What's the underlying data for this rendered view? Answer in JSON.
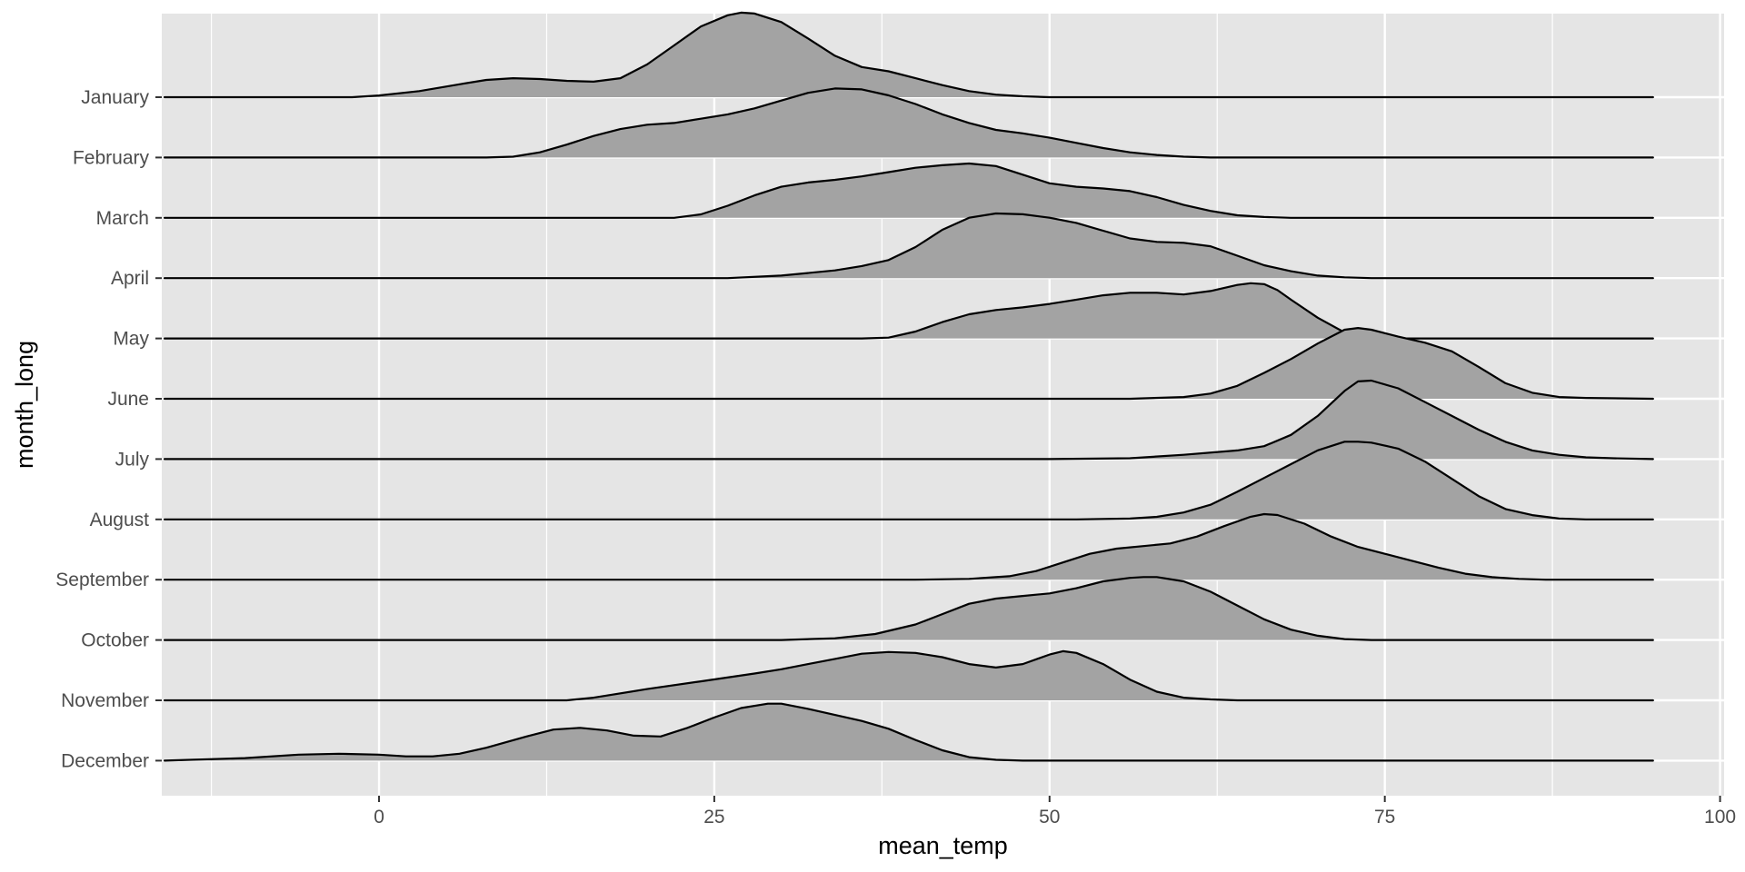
{
  "chart_data": {
    "type": "ridgeline",
    "xlabel": "mean_temp",
    "ylabel": "month_long",
    "xlim": [
      -16.2,
      100.3
    ],
    "x_ticks": [
      0,
      25,
      50,
      75,
      100
    ],
    "grid": true,
    "fill_color": "#a3a3a3",
    "line_color": "#000000",
    "panel_color": "#e5e5e5",
    "grid_color": "#ffffff",
    "categories": [
      "January",
      "February",
      "March",
      "April",
      "May",
      "June",
      "July",
      "August",
      "September",
      "October",
      "November",
      "December"
    ],
    "series": [
      {
        "label": "January",
        "points": [
          [
            -16,
            0
          ],
          [
            -10,
            0
          ],
          [
            -2,
            0
          ],
          [
            0,
            0.02
          ],
          [
            3,
            0.07
          ],
          [
            6,
            0.15
          ],
          [
            8,
            0.2
          ],
          [
            10,
            0.22
          ],
          [
            12,
            0.21
          ],
          [
            14,
            0.19
          ],
          [
            16,
            0.18
          ],
          [
            18,
            0.22
          ],
          [
            20,
            0.38
          ],
          [
            22,
            0.6
          ],
          [
            24,
            0.82
          ],
          [
            26,
            0.95
          ],
          [
            27,
            0.98
          ],
          [
            28,
            0.97
          ],
          [
            30,
            0.87
          ],
          [
            32,
            0.68
          ],
          [
            34,
            0.48
          ],
          [
            36,
            0.35
          ],
          [
            38,
            0.3
          ],
          [
            40,
            0.22
          ],
          [
            42,
            0.14
          ],
          [
            44,
            0.07
          ],
          [
            46,
            0.03
          ],
          [
            48,
            0.01
          ],
          [
            50,
            0
          ],
          [
            60,
            0
          ],
          [
            95,
            0
          ]
        ]
      },
      {
        "label": "February",
        "points": [
          [
            -16,
            0
          ],
          [
            0,
            0
          ],
          [
            8,
            0
          ],
          [
            10,
            0.01
          ],
          [
            12,
            0.06
          ],
          [
            14,
            0.15
          ],
          [
            16,
            0.25
          ],
          [
            18,
            0.33
          ],
          [
            20,
            0.38
          ],
          [
            22,
            0.4
          ],
          [
            24,
            0.45
          ],
          [
            26,
            0.5
          ],
          [
            28,
            0.57
          ],
          [
            30,
            0.66
          ],
          [
            32,
            0.75
          ],
          [
            34,
            0.8
          ],
          [
            36,
            0.79
          ],
          [
            38,
            0.72
          ],
          [
            40,
            0.62
          ],
          [
            42,
            0.5
          ],
          [
            44,
            0.4
          ],
          [
            46,
            0.32
          ],
          [
            48,
            0.28
          ],
          [
            50,
            0.23
          ],
          [
            52,
            0.17
          ],
          [
            54,
            0.11
          ],
          [
            56,
            0.06
          ],
          [
            58,
            0.03
          ],
          [
            60,
            0.01
          ],
          [
            62,
            0
          ],
          [
            95,
            0
          ]
        ]
      },
      {
        "label": "March",
        "points": [
          [
            -16,
            0
          ],
          [
            15,
            0
          ],
          [
            22,
            0
          ],
          [
            24,
            0.04
          ],
          [
            26,
            0.14
          ],
          [
            28,
            0.26
          ],
          [
            30,
            0.36
          ],
          [
            32,
            0.41
          ],
          [
            34,
            0.44
          ],
          [
            36,
            0.48
          ],
          [
            38,
            0.53
          ],
          [
            40,
            0.58
          ],
          [
            42,
            0.61
          ],
          [
            44,
            0.63
          ],
          [
            46,
            0.6
          ],
          [
            48,
            0.5
          ],
          [
            50,
            0.4
          ],
          [
            52,
            0.36
          ],
          [
            54,
            0.34
          ],
          [
            56,
            0.31
          ],
          [
            58,
            0.24
          ],
          [
            60,
            0.15
          ],
          [
            62,
            0.08
          ],
          [
            64,
            0.03
          ],
          [
            66,
            0.01
          ],
          [
            68,
            0
          ],
          [
            95,
            0
          ]
        ]
      },
      {
        "label": "April",
        "points": [
          [
            -16,
            0
          ],
          [
            20,
            0
          ],
          [
            26,
            0
          ],
          [
            30,
            0.03
          ],
          [
            34,
            0.09
          ],
          [
            36,
            0.14
          ],
          [
            38,
            0.21
          ],
          [
            40,
            0.36
          ],
          [
            42,
            0.56
          ],
          [
            44,
            0.7
          ],
          [
            46,
            0.75
          ],
          [
            48,
            0.74
          ],
          [
            50,
            0.7
          ],
          [
            52,
            0.64
          ],
          [
            54,
            0.55
          ],
          [
            56,
            0.46
          ],
          [
            58,
            0.42
          ],
          [
            60,
            0.41
          ],
          [
            62,
            0.37
          ],
          [
            64,
            0.26
          ],
          [
            66,
            0.15
          ],
          [
            68,
            0.08
          ],
          [
            70,
            0.03
          ],
          [
            72,
            0.01
          ],
          [
            74,
            0
          ],
          [
            95,
            0
          ]
        ]
      },
      {
        "label": "May",
        "points": [
          [
            -16,
            0
          ],
          [
            30,
            0
          ],
          [
            36,
            0
          ],
          [
            38,
            0.01
          ],
          [
            40,
            0.08
          ],
          [
            42,
            0.19
          ],
          [
            44,
            0.28
          ],
          [
            46,
            0.33
          ],
          [
            48,
            0.36
          ],
          [
            50,
            0.4
          ],
          [
            52,
            0.45
          ],
          [
            54,
            0.5
          ],
          [
            56,
            0.53
          ],
          [
            58,
            0.53
          ],
          [
            60,
            0.51
          ],
          [
            62,
            0.55
          ],
          [
            64,
            0.62
          ],
          [
            65,
            0.64
          ],
          [
            66,
            0.63
          ],
          [
            67,
            0.56
          ],
          [
            68,
            0.45
          ],
          [
            70,
            0.24
          ],
          [
            72,
            0.07
          ],
          [
            74,
            0.02
          ],
          [
            76,
            0
          ],
          [
            95,
            0
          ]
        ]
      },
      {
        "label": "June",
        "points": [
          [
            -16,
            0
          ],
          [
            45,
            0
          ],
          [
            50,
            0
          ],
          [
            56,
            0
          ],
          [
            60,
            0.02
          ],
          [
            62,
            0.06
          ],
          [
            64,
            0.15
          ],
          [
            66,
            0.3
          ],
          [
            68,
            0.46
          ],
          [
            70,
            0.64
          ],
          [
            72,
            0.8
          ],
          [
            73,
            0.82
          ],
          [
            74,
            0.8
          ],
          [
            76,
            0.72
          ],
          [
            78,
            0.65
          ],
          [
            80,
            0.55
          ],
          [
            82,
            0.37
          ],
          [
            84,
            0.18
          ],
          [
            86,
            0.07
          ],
          [
            88,
            0.02
          ],
          [
            90,
            0.01
          ],
          [
            95,
            0
          ]
        ]
      },
      {
        "label": "July",
        "points": [
          [
            -16,
            0
          ],
          [
            45,
            0
          ],
          [
            50,
            0
          ],
          [
            56,
            0.01
          ],
          [
            60,
            0.05
          ],
          [
            64,
            0.1
          ],
          [
            66,
            0.15
          ],
          [
            68,
            0.28
          ],
          [
            70,
            0.5
          ],
          [
            72,
            0.79
          ],
          [
            73,
            0.9
          ],
          [
            74,
            0.91
          ],
          [
            76,
            0.82
          ],
          [
            78,
            0.66
          ],
          [
            80,
            0.5
          ],
          [
            82,
            0.34
          ],
          [
            84,
            0.2
          ],
          [
            86,
            0.1
          ],
          [
            88,
            0.05
          ],
          [
            90,
            0.02
          ],
          [
            92,
            0.01
          ],
          [
            95,
            0
          ]
        ]
      },
      {
        "label": "August",
        "points": [
          [
            -16,
            0
          ],
          [
            45,
            0
          ],
          [
            52,
            0
          ],
          [
            56,
            0.01
          ],
          [
            58,
            0.03
          ],
          [
            60,
            0.08
          ],
          [
            62,
            0.17
          ],
          [
            64,
            0.32
          ],
          [
            66,
            0.48
          ],
          [
            68,
            0.64
          ],
          [
            70,
            0.8
          ],
          [
            72,
            0.9
          ],
          [
            73,
            0.9
          ],
          [
            74,
            0.89
          ],
          [
            76,
            0.82
          ],
          [
            78,
            0.67
          ],
          [
            80,
            0.47
          ],
          [
            82,
            0.27
          ],
          [
            84,
            0.12
          ],
          [
            86,
            0.05
          ],
          [
            88,
            0.01
          ],
          [
            90,
            0
          ],
          [
            95,
            0
          ]
        ]
      },
      {
        "label": "September",
        "points": [
          [
            -16,
            0
          ],
          [
            35,
            0
          ],
          [
            40,
            0
          ],
          [
            44,
            0.01
          ],
          [
            47,
            0.04
          ],
          [
            49,
            0.1
          ],
          [
            51,
            0.2
          ],
          [
            53,
            0.3
          ],
          [
            55,
            0.36
          ],
          [
            57,
            0.39
          ],
          [
            59,
            0.42
          ],
          [
            61,
            0.5
          ],
          [
            63,
            0.62
          ],
          [
            65,
            0.73
          ],
          [
            66,
            0.76
          ],
          [
            67,
            0.75
          ],
          [
            69,
            0.65
          ],
          [
            71,
            0.5
          ],
          [
            73,
            0.38
          ],
          [
            75,
            0.3
          ],
          [
            77,
            0.22
          ],
          [
            79,
            0.14
          ],
          [
            81,
            0.07
          ],
          [
            83,
            0.03
          ],
          [
            85,
            0.01
          ],
          [
            87,
            0
          ],
          [
            95,
            0
          ]
        ]
      },
      {
        "label": "October",
        "points": [
          [
            -16,
            0
          ],
          [
            20,
            0
          ],
          [
            30,
            0
          ],
          [
            34,
            0.02
          ],
          [
            37,
            0.07
          ],
          [
            40,
            0.18
          ],
          [
            42,
            0.3
          ],
          [
            44,
            0.42
          ],
          [
            46,
            0.48
          ],
          [
            48,
            0.51
          ],
          [
            50,
            0.54
          ],
          [
            52,
            0.6
          ],
          [
            54,
            0.68
          ],
          [
            56,
            0.72
          ],
          [
            57,
            0.73
          ],
          [
            58,
            0.73
          ],
          [
            60,
            0.68
          ],
          [
            62,
            0.56
          ],
          [
            64,
            0.4
          ],
          [
            66,
            0.24
          ],
          [
            68,
            0.12
          ],
          [
            70,
            0.05
          ],
          [
            72,
            0.01
          ],
          [
            74,
            0
          ],
          [
            95,
            0
          ]
        ]
      },
      {
        "label": "November",
        "points": [
          [
            -16,
            0
          ],
          [
            10,
            0
          ],
          [
            14,
            0
          ],
          [
            16,
            0.03
          ],
          [
            20,
            0.13
          ],
          [
            24,
            0.22
          ],
          [
            28,
            0.31
          ],
          [
            30,
            0.36
          ],
          [
            32,
            0.42
          ],
          [
            34,
            0.48
          ],
          [
            36,
            0.54
          ],
          [
            38,
            0.56
          ],
          [
            40,
            0.55
          ],
          [
            42,
            0.5
          ],
          [
            44,
            0.42
          ],
          [
            46,
            0.38
          ],
          [
            48,
            0.42
          ],
          [
            50,
            0.53
          ],
          [
            51,
            0.57
          ],
          [
            52,
            0.55
          ],
          [
            54,
            0.42
          ],
          [
            56,
            0.24
          ],
          [
            58,
            0.1
          ],
          [
            60,
            0.03
          ],
          [
            62,
            0.01
          ],
          [
            64,
            0
          ],
          [
            95,
            0
          ]
        ]
      },
      {
        "label": "December",
        "points": [
          [
            -16,
            0
          ],
          [
            -10,
            0.03
          ],
          [
            -6,
            0.07
          ],
          [
            -3,
            0.08
          ],
          [
            0,
            0.07
          ],
          [
            2,
            0.05
          ],
          [
            4,
            0.05
          ],
          [
            6,
            0.08
          ],
          [
            8,
            0.15
          ],
          [
            11,
            0.28
          ],
          [
            13,
            0.36
          ],
          [
            15,
            0.38
          ],
          [
            17,
            0.35
          ],
          [
            19,
            0.29
          ],
          [
            21,
            0.28
          ],
          [
            23,
            0.38
          ],
          [
            25,
            0.5
          ],
          [
            27,
            0.61
          ],
          [
            29,
            0.66
          ],
          [
            30,
            0.66
          ],
          [
            32,
            0.6
          ],
          [
            34,
            0.53
          ],
          [
            36,
            0.46
          ],
          [
            38,
            0.37
          ],
          [
            40,
            0.24
          ],
          [
            42,
            0.12
          ],
          [
            44,
            0.04
          ],
          [
            46,
            0.01
          ],
          [
            48,
            0
          ],
          [
            95,
            0
          ]
        ]
      }
    ]
  }
}
